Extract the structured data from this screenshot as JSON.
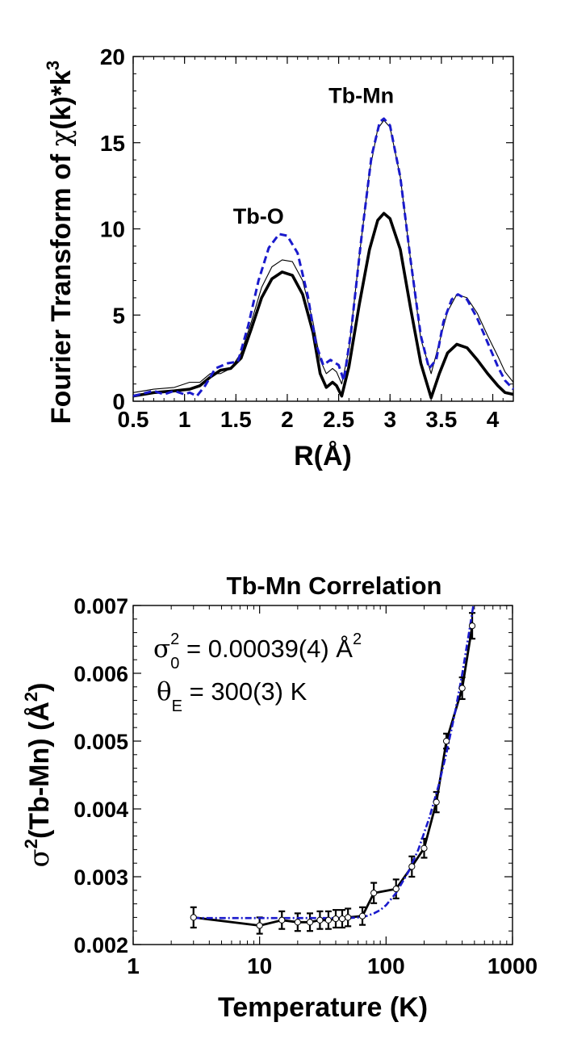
{
  "chart_data": [
    {
      "type": "line",
      "title": "",
      "xlabel": "R(Å)",
      "ylabel_parts": {
        "main": "Fourier Transform of ",
        "chi": "χ",
        "mid": "(k)*k",
        "sup": "3"
      },
      "xlim": [
        0.5,
        4.2
      ],
      "ylim": [
        0,
        20
      ],
      "xticks": [
        "0.5",
        "1",
        "1.5",
        "2",
        "2.5",
        "3",
        "3.5",
        "4"
      ],
      "yticks": [
        "0",
        "5",
        "10",
        "15",
        "20"
      ],
      "annotations": [
        {
          "text": "Tb-O",
          "x": 1.72,
          "y": 10.3
        },
        {
          "text": "Tb-Mn",
          "x": 2.72,
          "y": 17.3
        }
      ],
      "series": [
        {
          "style": "thick-black",
          "color": "#000000",
          "points": [
            [
              0.5,
              0.3
            ],
            [
              0.7,
              0.5
            ],
            [
              0.9,
              0.6
            ],
            [
              1.05,
              0.7
            ],
            [
              1.15,
              0.9
            ],
            [
              1.25,
              1.4
            ],
            [
              1.35,
              1.8
            ],
            [
              1.45,
              1.9
            ],
            [
              1.55,
              2.5
            ],
            [
              1.65,
              4.2
            ],
            [
              1.75,
              6.0
            ],
            [
              1.85,
              7.1
            ],
            [
              1.95,
              7.5
            ],
            [
              2.05,
              7.3
            ],
            [
              2.15,
              6.2
            ],
            [
              2.25,
              4.0
            ],
            [
              2.32,
              1.6
            ],
            [
              2.38,
              0.8
            ],
            [
              2.44,
              1.1
            ],
            [
              2.48,
              0.9
            ],
            [
              2.53,
              0.3
            ],
            [
              2.6,
              2.0
            ],
            [
              2.7,
              5.6
            ],
            [
              2.8,
              8.8
            ],
            [
              2.88,
              10.5
            ],
            [
              2.94,
              10.9
            ],
            [
              3.0,
              10.6
            ],
            [
              3.1,
              8.8
            ],
            [
              3.2,
              5.4
            ],
            [
              3.3,
              2.2
            ],
            [
              3.4,
              0.2
            ],
            [
              3.48,
              1.6
            ],
            [
              3.56,
              2.8
            ],
            [
              3.65,
              3.3
            ],
            [
              3.75,
              3.1
            ],
            [
              3.85,
              2.4
            ],
            [
              3.95,
              1.6
            ],
            [
              4.05,
              0.9
            ],
            [
              4.12,
              0.5
            ],
            [
              4.2,
              0.4
            ]
          ]
        },
        {
          "style": "thin-black",
          "color": "#000000",
          "points": [
            [
              0.5,
              0.5
            ],
            [
              0.7,
              0.7
            ],
            [
              0.9,
              0.8
            ],
            [
              1.05,
              1.1
            ],
            [
              1.15,
              1.1
            ],
            [
              1.25,
              1.6
            ],
            [
              1.35,
              1.6
            ],
            [
              1.45,
              1.9
            ],
            [
              1.55,
              2.8
            ],
            [
              1.65,
              4.6
            ],
            [
              1.75,
              6.6
            ],
            [
              1.85,
              7.8
            ],
            [
              1.95,
              8.2
            ],
            [
              2.05,
              8.1
            ],
            [
              2.15,
              7.0
            ],
            [
              2.25,
              4.6
            ],
            [
              2.32,
              2.4
            ],
            [
              2.38,
              1.6
            ],
            [
              2.44,
              1.9
            ],
            [
              2.48,
              1.7
            ],
            [
              2.53,
              1.0
            ],
            [
              2.6,
              3.0
            ],
            [
              2.7,
              8.4
            ],
            [
              2.8,
              13.3
            ],
            [
              2.88,
              15.8
            ],
            [
              2.94,
              16.3
            ],
            [
              3.0,
              15.9
            ],
            [
              3.1,
              13.0
            ],
            [
              3.2,
              8.2
            ],
            [
              3.3,
              3.6
            ],
            [
              3.4,
              1.6
            ],
            [
              3.48,
              3.4
            ],
            [
              3.56,
              5.2
            ],
            [
              3.65,
              6.2
            ],
            [
              3.75,
              6.0
            ],
            [
              3.85,
              5.1
            ],
            [
              3.95,
              3.8
            ],
            [
              4.05,
              2.6
            ],
            [
              4.12,
              1.7
            ],
            [
              4.2,
              1.1
            ]
          ]
        },
        {
          "style": "dashed-blue",
          "color": "#1a1acc",
          "points": [
            [
              0.5,
              0.3
            ],
            [
              0.7,
              0.6
            ],
            [
              0.8,
              0.4
            ],
            [
              0.9,
              0.6
            ],
            [
              1.0,
              0.4
            ],
            [
              1.05,
              0.5
            ],
            [
              1.12,
              0.3
            ],
            [
              1.2,
              0.9
            ],
            [
              1.3,
              1.9
            ],
            [
              1.42,
              2.2
            ],
            [
              1.52,
              2.3
            ],
            [
              1.62,
              4.4
            ],
            [
              1.72,
              7.0
            ],
            [
              1.82,
              8.9
            ],
            [
              1.92,
              9.7
            ],
            [
              2.0,
              9.6
            ],
            [
              2.1,
              8.6
            ],
            [
              2.2,
              6.1
            ],
            [
              2.28,
              3.3
            ],
            [
              2.35,
              2.1
            ],
            [
              2.42,
              2.4
            ],
            [
              2.5,
              2.1
            ],
            [
              2.55,
              1.2
            ],
            [
              2.62,
              4.0
            ],
            [
              2.72,
              9.4
            ],
            [
              2.82,
              14.2
            ],
            [
              2.9,
              16.2
            ],
            [
              2.94,
              16.4
            ],
            [
              3.0,
              16.0
            ],
            [
              3.1,
              13.0
            ],
            [
              3.2,
              8.2
            ],
            [
              3.3,
              3.8
            ],
            [
              3.38,
              1.9
            ],
            [
              3.45,
              2.4
            ],
            [
              3.52,
              4.6
            ],
            [
              3.6,
              5.9
            ],
            [
              3.66,
              6.2
            ],
            [
              3.75,
              5.9
            ],
            [
              3.85,
              4.8
            ],
            [
              3.95,
              3.4
            ],
            [
              4.05,
              2.0
            ],
            [
              4.12,
              1.2
            ],
            [
              4.2,
              0.7
            ]
          ]
        }
      ]
    },
    {
      "type": "line",
      "title": "Tb-Mn Correlation",
      "xlabel": "Temperature (K)",
      "ylabel_parts": {
        "sigma": "σ",
        "sup": "2",
        "main": "(Tb-Mn) (Å",
        "sup2": "2",
        "end": ")"
      },
      "xscale": "log",
      "xlim": [
        1,
        1000
      ],
      "ylim": [
        0.002,
        0.007
      ],
      "xticks": [
        "1",
        "10",
        "100",
        "1000"
      ],
      "yticks": [
        "0.002",
        "0.003",
        "0.004",
        "0.005",
        "0.006",
        "0.007"
      ],
      "annotations": {
        "line1": {
          "sym": "σ",
          "sup": "2",
          "sub": "0",
          "rest": " = 0.00039(4) Å",
          "sup2": "2"
        },
        "line2": {
          "sym": "θ",
          "sub": "E",
          "rest": " = 300(3) K"
        }
      },
      "series": [
        {
          "style": "data-with-errorbars",
          "color": "#000000",
          "points": [
            [
              3,
              0.0024
            ],
            [
              10,
              0.00228
            ],
            [
              15,
              0.00236
            ],
            [
              20,
              0.00233
            ],
            [
              25,
              0.00233
            ],
            [
              30,
              0.00236
            ],
            [
              35,
              0.00236
            ],
            [
              40,
              0.00238
            ],
            [
              45,
              0.00238
            ],
            [
              50,
              0.0024
            ],
            [
              65,
              0.00242
            ],
            [
              80,
              0.00276
            ],
            [
              120,
              0.00282
            ],
            [
              160,
              0.00315
            ],
            [
              200,
              0.00342
            ],
            [
              250,
              0.0041
            ],
            [
              300,
              0.005
            ],
            [
              400,
              0.00578
            ],
            [
              480,
              0.0067
            ]
          ],
          "errors": [
            0.00015,
            0.00012,
            0.00013,
            0.00013,
            0.00013,
            0.00013,
            0.00013,
            0.00013,
            0.00013,
            0.00013,
            0.00013,
            0.00015,
            0.00014,
            0.00015,
            0.00014,
            0.00015,
            0.00011,
            0.00016,
            0.00019
          ]
        },
        {
          "style": "fit-dash-dot-blue",
          "color": "#1a1acc",
          "points": [
            [
              3,
              0.00239
            ],
            [
              10,
              0.00239
            ],
            [
              20,
              0.00239
            ],
            [
              30,
              0.00239
            ],
            [
              40,
              0.00239
            ],
            [
              50,
              0.00239
            ],
            [
              60,
              0.0024
            ],
            [
              70,
              0.00242
            ],
            [
              80,
              0.00246
            ],
            [
              90,
              0.00251
            ],
            [
              100,
              0.00258
            ],
            [
              120,
              0.00276
            ],
            [
              150,
              0.00307
            ],
            [
              180,
              0.0034
            ],
            [
              220,
              0.00387
            ],
            [
              260,
              0.00434
            ],
            [
              300,
              0.00482
            ],
            [
              350,
              0.00541
            ],
            [
              400,
              0.00599
            ],
            [
              450,
              0.00657
            ],
            [
              490,
              0.007
            ]
          ]
        }
      ]
    }
  ]
}
